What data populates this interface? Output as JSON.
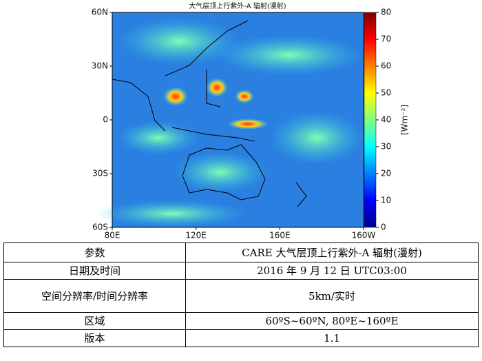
{
  "map": {
    "title": "大气层顶上行紫外-A 辐射(漫射)",
    "lat_ticks": [
      "60N",
      "30N",
      "0",
      "30S",
      "60S"
    ],
    "lon_ticks": [
      "80E",
      "120E",
      "160E",
      "160W"
    ],
    "colorbar": {
      "label": "[Wm⁻²]",
      "lim": [
        0,
        80
      ],
      "ticks": [
        0,
        10,
        20,
        30,
        40,
        50,
        60,
        70,
        80
      ]
    }
  },
  "table": {
    "rows": [
      [
        "参数",
        "CARE 大气层顶上行紫外-A 辐射(漫射)"
      ],
      [
        "日期及时间",
        "2016 年 9 月 12 日 UTC03:00"
      ],
      [
        "空间分辨率/时间分辨率",
        "5km/实时"
      ],
      [
        "区域",
        "60ºS~60ºN, 80ºE~160ºE"
      ],
      [
        "版本",
        "1.1"
      ]
    ]
  }
}
